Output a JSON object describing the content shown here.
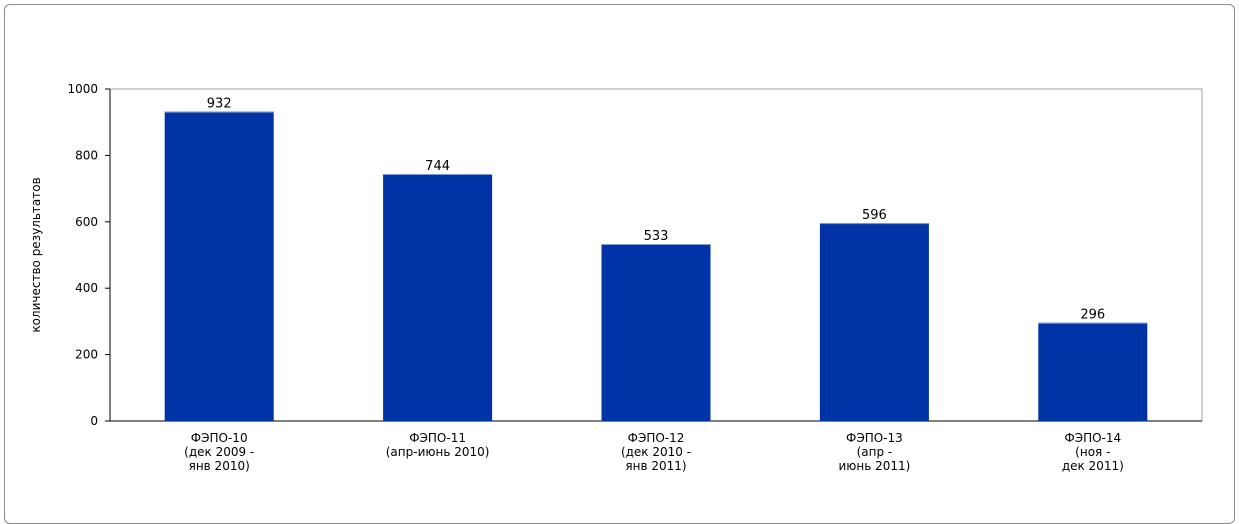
{
  "chart_data": {
    "type": "bar",
    "ylabel": "количество результатов",
    "xlabel": "",
    "ylim": [
      0,
      1000
    ],
    "yticks": [
      0,
      200,
      400,
      600,
      800,
      1000
    ],
    "grid": false,
    "bar_color": "#0033a6",
    "categories": [
      [
        "ФЭПО-10",
        "(дек 2009 -",
        "янв 2010)"
      ],
      [
        "ФЭПО-11",
        "(апр-июнь 2010)"
      ],
      [
        "ФЭПО-12",
        "(дек 2010 -",
        "янв 2011)"
      ],
      [
        "ФЭПО-13",
        "(апр -",
        "июнь 2011)"
      ],
      [
        "ФЭПО-14",
        "(ноя -",
        "дек 2011)"
      ]
    ],
    "values": [
      932,
      744,
      533,
      596,
      296
    ]
  }
}
